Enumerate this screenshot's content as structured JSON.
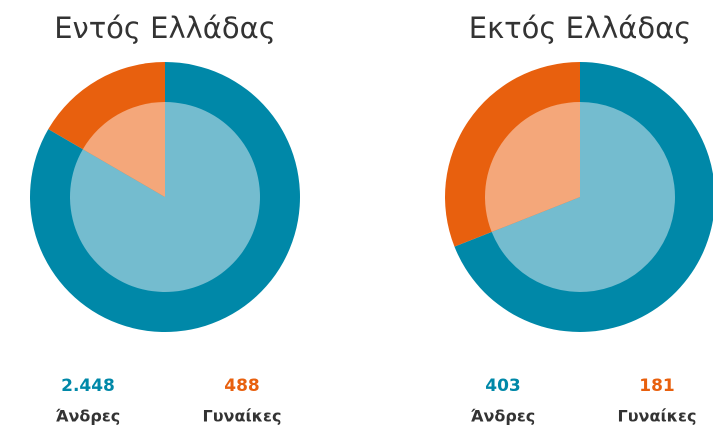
{
  "chart_data": [
    {
      "type": "pie",
      "title": "Εντός Ελλάδας",
      "categories": [
        "Άνδρες",
        "Γυναίκες"
      ],
      "values": [
        2448,
        488
      ],
      "value_labels": [
        "2.448",
        "488"
      ],
      "colors": [
        "#0088a8",
        "#e8600e"
      ],
      "inner_colors": [
        "#74bccf",
        "#f4a77a"
      ]
    },
    {
      "type": "pie",
      "title": "Εκτός Ελλάδας",
      "categories": [
        "Άνδρες",
        "Γυναίκες"
      ],
      "values": [
        403,
        181
      ],
      "value_labels": [
        "403",
        "181"
      ],
      "colors": [
        "#0088a8",
        "#e8600e"
      ],
      "inner_colors": [
        "#74bccf",
        "#f4a77a"
      ]
    }
  ]
}
